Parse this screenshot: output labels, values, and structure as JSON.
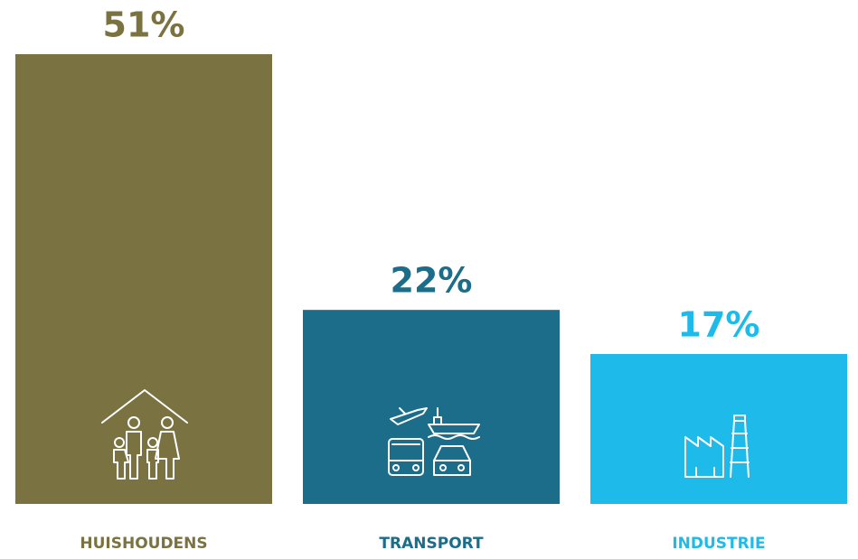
{
  "chart_data": {
    "type": "bar",
    "categories": [
      "HUISHOUDENS",
      "TRANSPORT",
      "INDUSTRIE"
    ],
    "values": [
      51,
      22,
      17
    ],
    "value_labels": [
      "51%",
      "22%",
      "17%"
    ],
    "colors": [
      "#7a7240",
      "#1b6d8a",
      "#1ebbea"
    ]
  }
}
